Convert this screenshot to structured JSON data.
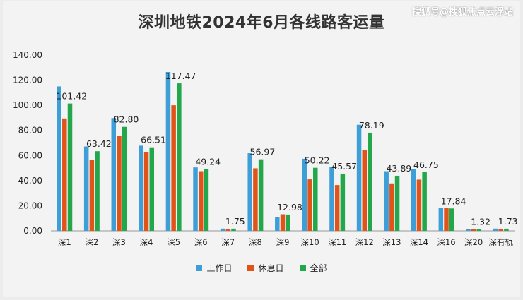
{
  "watermark": "搜狐号@搜狐焦点云浮站",
  "chart_data": {
    "type": "bar",
    "title": "深圳地铁2024年6月各线路客运量",
    "categories": [
      "深1",
      "深2",
      "深3",
      "深4",
      "深5",
      "深6",
      "深7",
      "深8",
      "深9",
      "深10",
      "深11",
      "深12",
      "深13",
      "深14",
      "深16",
      "深20",
      "深有轨"
    ],
    "series": [
      {
        "name": "工作日",
        "color": "#3d9ed8",
        "values": [
          115.0,
          67.2,
          89.8,
          67.8,
          126.5,
          50.5,
          1.8,
          61.8,
          10.8,
          57.4,
          50.8,
          84.5,
          47.5,
          49.4,
          18.0,
          1.4,
          1.8
        ]
      },
      {
        "name": "休息日",
        "color": "#e0541a",
        "values": [
          89.5,
          56.5,
          75.5,
          62.5,
          100.0,
          47.5,
          1.7,
          49.8,
          13.2,
          41.0,
          36.5,
          64.5,
          37.8,
          40.8,
          18.0,
          1.2,
          1.6
        ]
      },
      {
        "name": "全部",
        "color": "#22a84a",
        "values": [
          101.42,
          63.42,
          82.8,
          66.51,
          117.47,
          49.24,
          1.75,
          56.97,
          12.98,
          50.22,
          45.57,
          78.19,
          43.89,
          46.75,
          17.84,
          1.32,
          1.73
        ]
      }
    ],
    "data_labels": [
      "101.42",
      "63.42",
      "82.80",
      "66.51",
      "117.47",
      "49.24",
      "1.75",
      "56.97",
      "12.98",
      "50.22",
      "45.57",
      "78.19",
      "43.89",
      "46.75",
      "17.84",
      "1.32",
      "1.73"
    ],
    "y_ticks": [
      "0.00",
      "20.00",
      "40.00",
      "60.00",
      "80.00",
      "100.00",
      "120.00",
      "140.00"
    ],
    "ylim": [
      0,
      140
    ],
    "xlabel": "",
    "ylabel": "",
    "grid": false,
    "legend": "bottom"
  }
}
